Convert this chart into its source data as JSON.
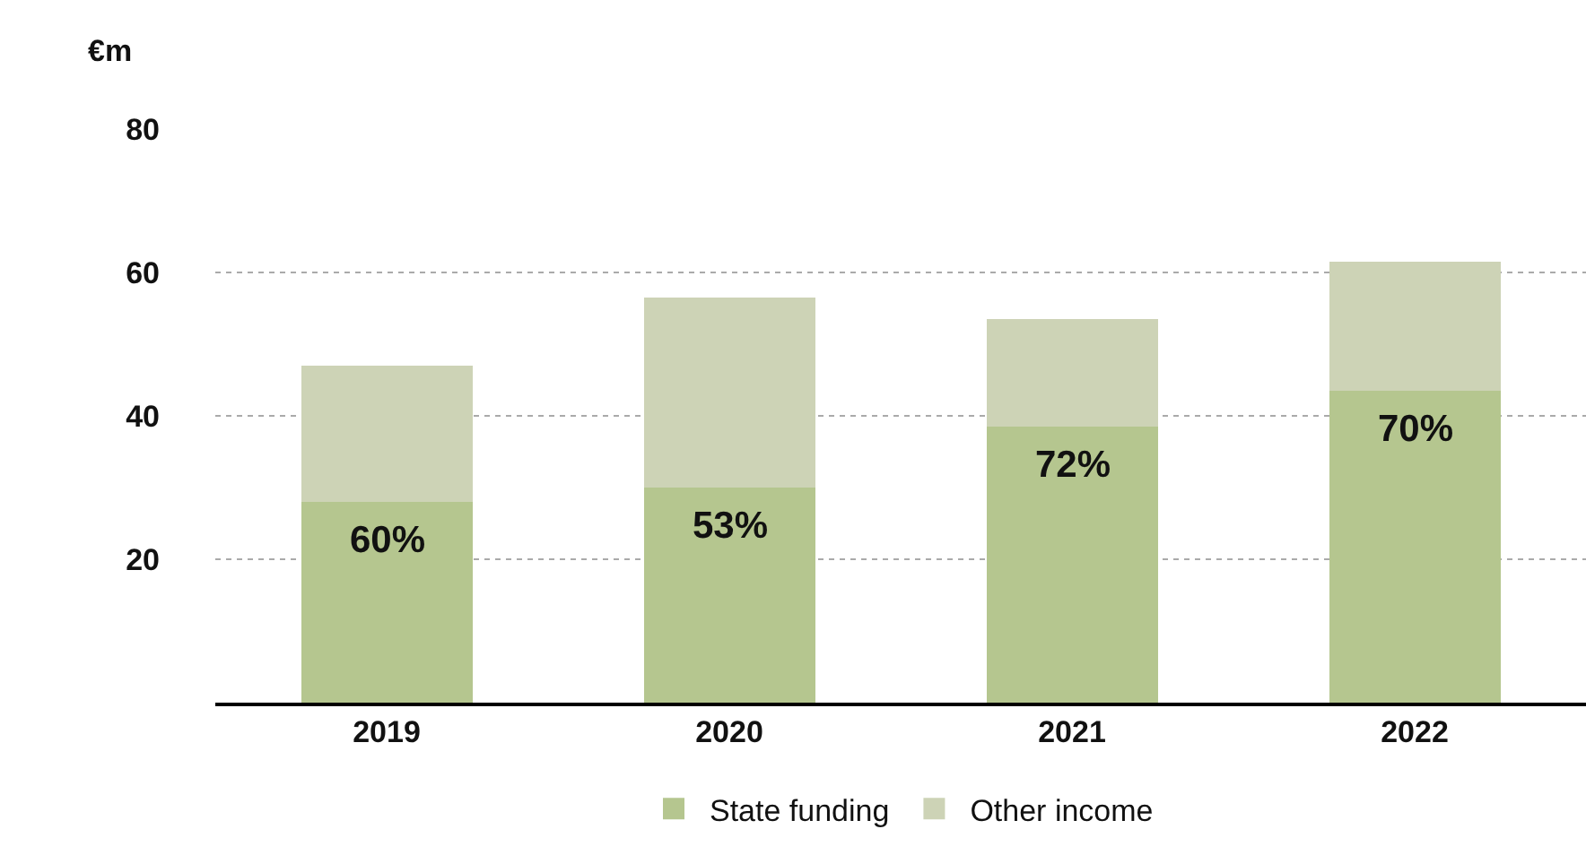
{
  "chart_data": {
    "type": "bar",
    "stacked": true,
    "ylabel": "€m",
    "categories": [
      "2019",
      "2020",
      "2021",
      "2022"
    ],
    "series": [
      {
        "name": "State funding",
        "color": "#b5c68f",
        "values": [
          28,
          30,
          38.5,
          43.5
        ]
      },
      {
        "name": "Other income",
        "color": "#cdd3b6",
        "values": [
          19,
          26.5,
          15,
          18
        ]
      }
    ],
    "annotations": [
      {
        "text": "60%",
        "x": "2019",
        "y": 28
      },
      {
        "text": "53%",
        "x": "2020",
        "y": 30
      },
      {
        "text": "72%",
        "x": "2021",
        "y": 38.5
      },
      {
        "text": "70%",
        "x": "2022",
        "y": 43.5
      }
    ],
    "ylim": [
      0,
      80
    ],
    "yticks": [
      20,
      40,
      60,
      80
    ],
    "grid": "y",
    "legend": "bottom"
  }
}
